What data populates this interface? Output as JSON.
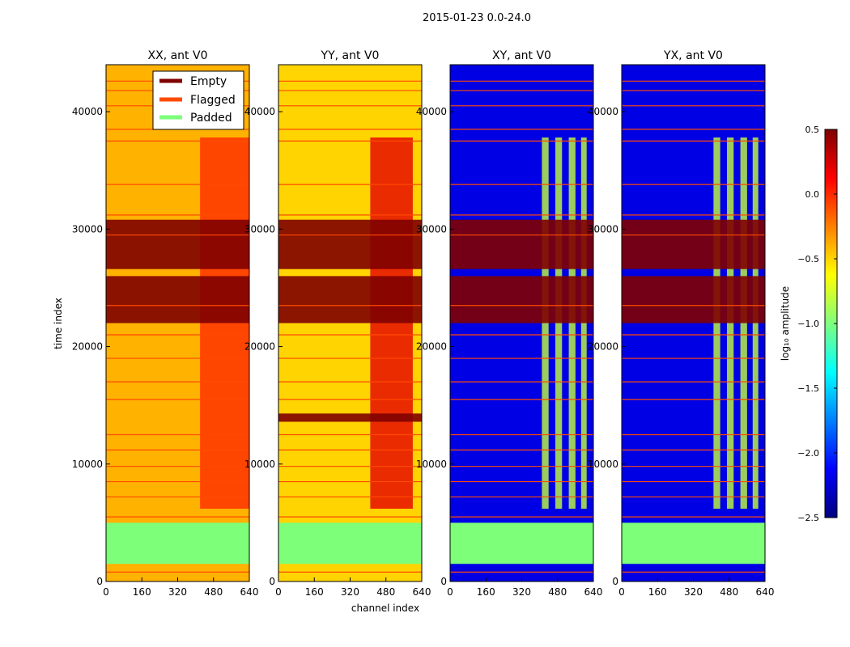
{
  "figure": {
    "suptitle": "2015-01-23 0.0-24.0"
  },
  "colors": {
    "empty": "#7f0000",
    "flagged": "#ff4a00",
    "padded": "#7dff7a",
    "jet_stops": [
      "#00007f",
      "#0000ff",
      "#007fff",
      "#00ffff",
      "#7fff7f",
      "#ffff00",
      "#ff7f00",
      "#ff0000",
      "#7f0000"
    ]
  },
  "chart_data": {
    "type": "heatmap",
    "xlabel": "channel index",
    "ylabel": "time index",
    "xlim": [
      0,
      640
    ],
    "ylim": [
      0,
      44000
    ],
    "xticks": [
      0,
      160,
      320,
      480,
      640
    ],
    "yticks": [
      0,
      10000,
      20000,
      30000,
      40000
    ],
    "legend": {
      "placement": "top-right of first panel",
      "entries": [
        {
          "label": "Empty",
          "color_key": "empty"
        },
        {
          "label": "Flagged",
          "color_key": "flagged"
        },
        {
          "label": "Padded",
          "color_key": "padded"
        }
      ]
    },
    "colorbar": {
      "label": "log₁₀ amplitude",
      "range": [
        -2.5,
        0.5
      ],
      "ticks": [
        0.5,
        0.0,
        -0.5,
        -1.0,
        -1.5,
        -2.0,
        -2.5
      ],
      "tick_labels": [
        "0.5",
        "0.0",
        "−0.5",
        "−1.0",
        "−1.5",
        "−2.0",
        "−2.5"
      ]
    },
    "empty_time_ranges": [
      [
        22000,
        26000
      ],
      [
        26600,
        30800
      ],
      [
        13600,
        14300
      ]
    ],
    "padded_time_range": [
      1500,
      5000
    ],
    "flagged_rows": [
      800,
      5500,
      7200,
      8500,
      9800,
      11200,
      12500,
      15500,
      17000,
      19000,
      21000,
      23500,
      29500,
      31200,
      33800,
      37500,
      38500,
      40500,
      41800,
      42600
    ],
    "panels": [
      {
        "title": "XX, ant V0",
        "pol": "XX",
        "show_legend": true,
        "base_level": -0.4,
        "bright_channels": [
          [
            420,
            640
          ]
        ],
        "bright_level": 0.0
      },
      {
        "title": "YY, ant V0",
        "pol": "YY",
        "show_legend": false,
        "base_level": -0.5,
        "bright_channels": [
          [
            410,
            600
          ]
        ],
        "bright_level": 0.2
      },
      {
        "title": "XY, ant V0",
        "pol": "XY",
        "show_legend": false,
        "base_level": -2.2,
        "bright_channels": [
          [
            410,
            440
          ],
          [
            470,
            500
          ],
          [
            530,
            560
          ],
          [
            585,
            610
          ]
        ],
        "bright_level": -0.8
      },
      {
        "title": "YX, ant V0",
        "pol": "YX",
        "show_legend": false,
        "base_level": -2.2,
        "bright_channels": [
          [
            410,
            440
          ],
          [
            470,
            500
          ],
          [
            530,
            560
          ],
          [
            585,
            610
          ]
        ],
        "bright_level": -0.8
      }
    ]
  }
}
